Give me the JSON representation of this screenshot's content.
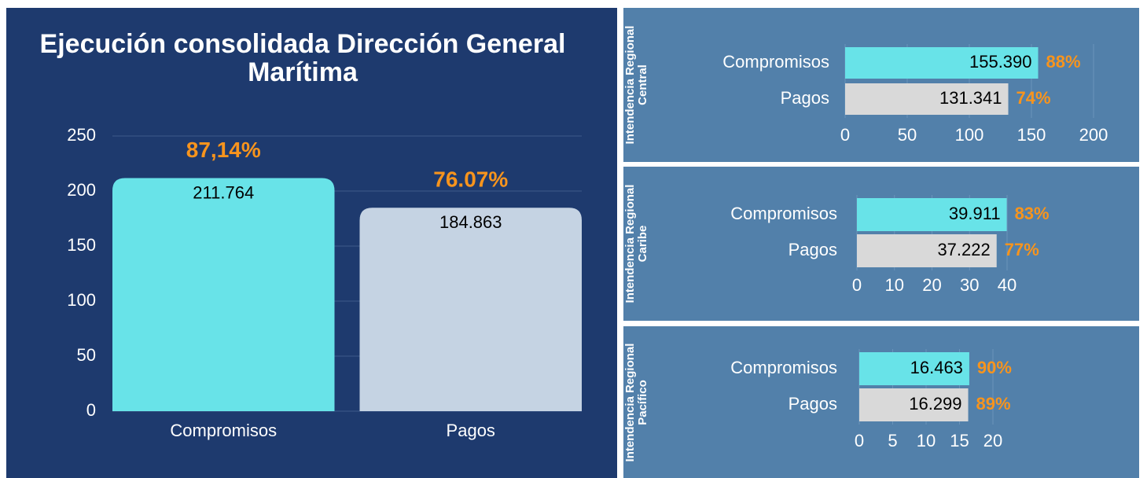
{
  "chart_data": [
    {
      "type": "bar",
      "title": "Ejecución consolidada Dirección General Marítima",
      "categories": [
        "Compromisos",
        "Pagos"
      ],
      "values": [
        211.764,
        184.863
      ],
      "annotations": [
        "87,14%",
        "76.07%"
      ],
      "colors": [
        "#68e3e8",
        "#c5d3e3"
      ],
      "ylim": [
        0,
        250
      ],
      "yticks": [
        0,
        50,
        100,
        150,
        200,
        250
      ],
      "grid": true
    },
    {
      "type": "hbar",
      "title": "Intendencia Regional Central",
      "categories": [
        "Compromisos",
        "Pagos"
      ],
      "values": [
        155.39,
        131.341
      ],
      "value_labels": [
        "155.390",
        "131.341"
      ],
      "annotations": [
        "88%",
        "74%"
      ],
      "colors": [
        "#68e3e8",
        "#d9d9d9"
      ],
      "xlim": [
        0,
        200
      ],
      "xticks": [
        0,
        50,
        100,
        150,
        200
      ],
      "grid": true
    },
    {
      "type": "hbar",
      "title": "Intendencia Regional Caribe",
      "categories": [
        "Compromisos",
        "Pagos"
      ],
      "values": [
        39.911,
        37.222
      ],
      "value_labels": [
        "39.911",
        "37.222"
      ],
      "annotations": [
        "83%",
        "77%"
      ],
      "colors": [
        "#68e3e8",
        "#d9d9d9"
      ],
      "xlim": [
        0,
        40
      ],
      "xticks": [
        0,
        10,
        20,
        30,
        40
      ],
      "grid": true
    },
    {
      "type": "hbar",
      "title": "Intendencia Regional Pacífico",
      "categories": [
        "Compromisos",
        "Pagos"
      ],
      "values": [
        16.463,
        16.299
      ],
      "value_labels": [
        "16.463",
        "16.299"
      ],
      "annotations": [
        "90%",
        "89%"
      ],
      "colors": [
        "#68e3e8",
        "#d9d9d9"
      ],
      "xlim": [
        0,
        20
      ],
      "xticks": [
        0,
        5,
        10,
        15,
        20
      ],
      "grid": true
    }
  ]
}
